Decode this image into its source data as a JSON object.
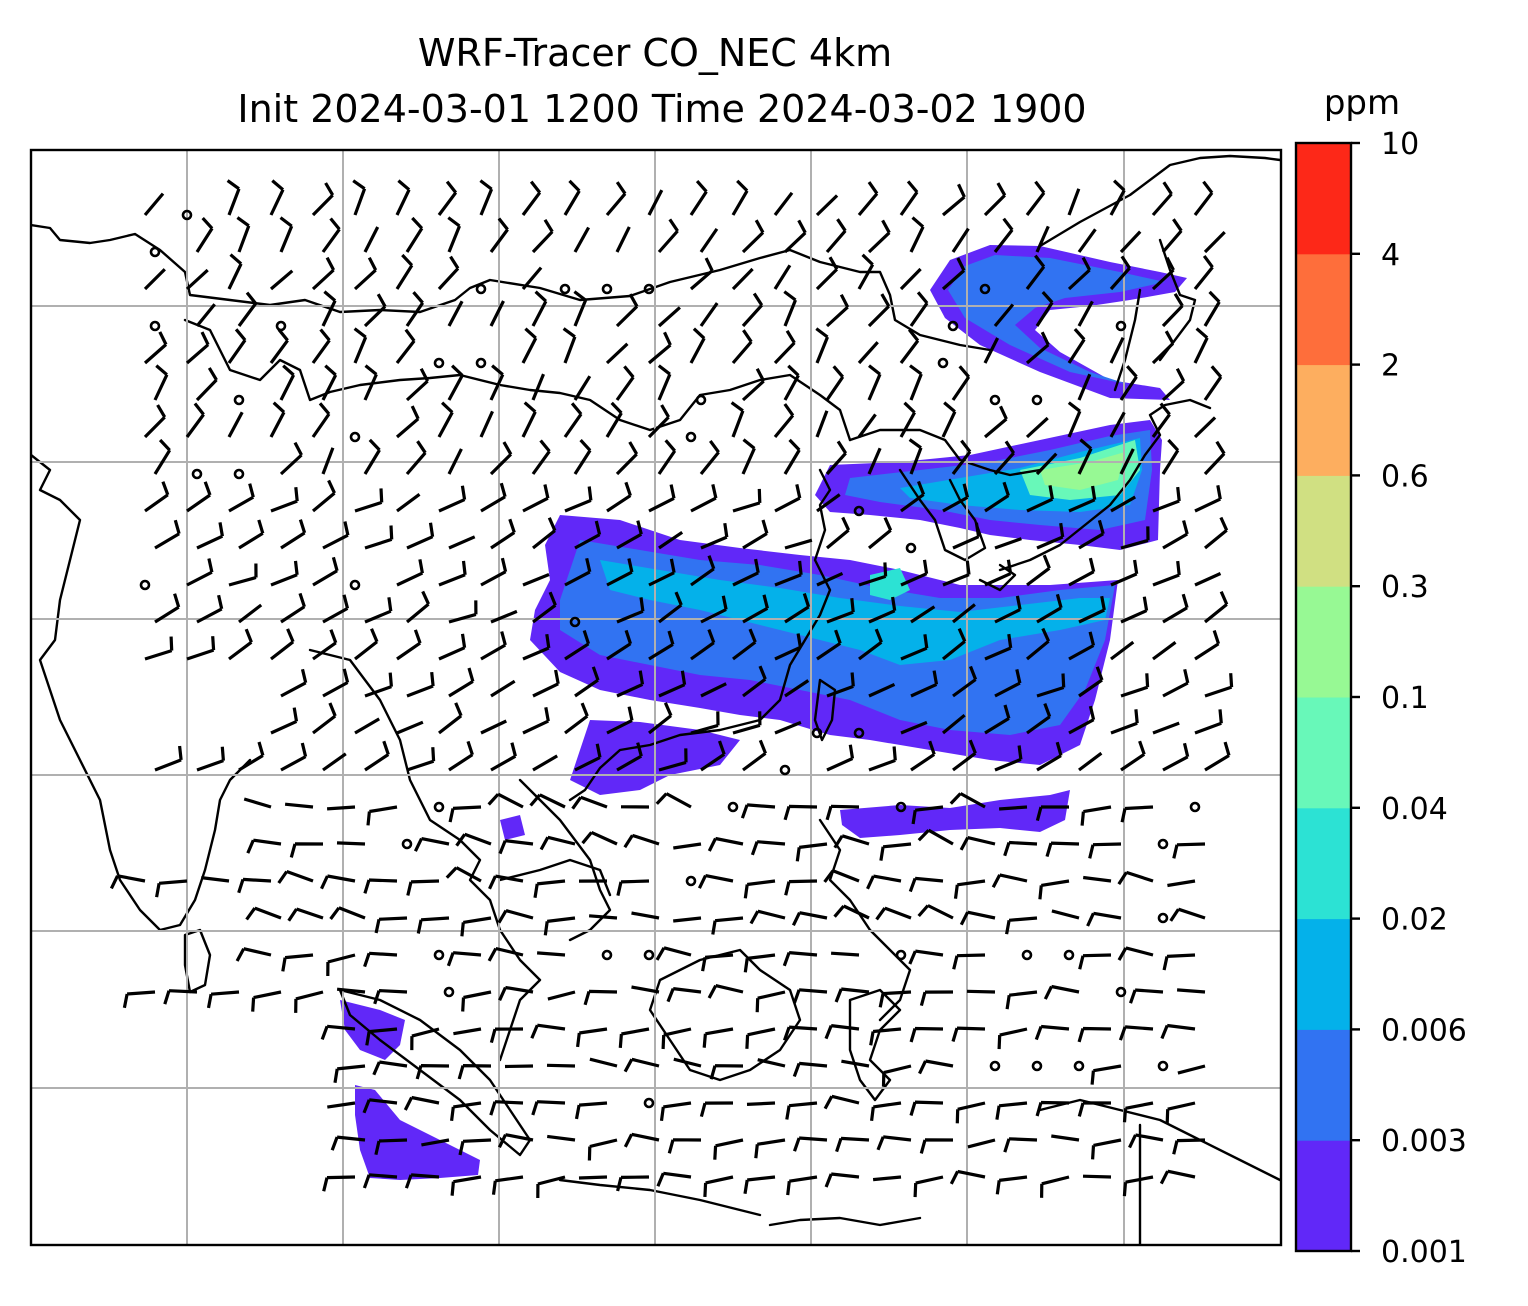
{
  "title": {
    "line1": "WRF-Tracer CO_NEC 4km",
    "line2": "Init 2024-03-01 1200 Time 2024-03-02 1900"
  },
  "colorbar": {
    "unit": "ppm",
    "levels": [
      "0.001",
      "0.003",
      "0.006",
      "0.02",
      "0.04",
      "0.1",
      "0.3",
      "0.6",
      "2",
      "4",
      "10"
    ],
    "colors": [
      "#6128f8",
      "#3173f2",
      "#04b1ea",
      "#2ce2d4",
      "#68f8b9",
      "#97f994",
      "#d0e082",
      "#fdae5f",
      "#fe6e3b",
      "#fd2818"
    ]
  },
  "chart_data": {
    "type": "heatmap",
    "field": "CO_NEC tracer concentration",
    "unit": "ppm",
    "bounds": [
      0.001,
      0.003,
      0.006,
      0.02,
      0.04,
      0.1,
      0.3,
      0.6,
      2,
      4,
      10
    ],
    "overlay": "wind barbs",
    "grid": true
  }
}
